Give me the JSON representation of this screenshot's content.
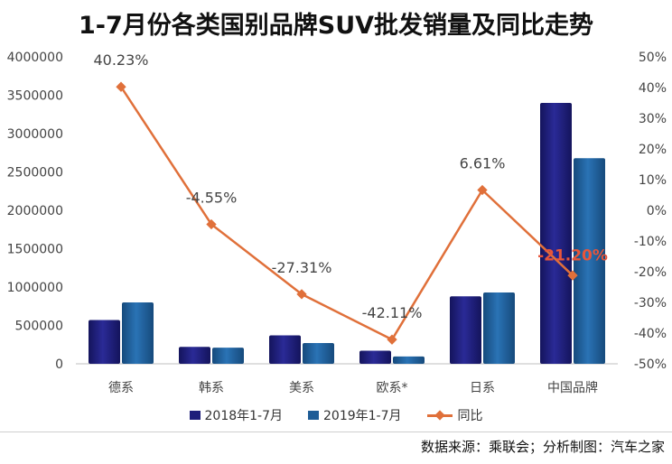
{
  "title": "1-7月份各类国别品牌SUV批发销量及同比走势",
  "source": "数据来源：乘联会；分析制图：汽车之家",
  "colors": {
    "s2018": "#1f1f7a",
    "s2019": "#1e5c96",
    "yoy": "#e0703a",
    "highlight": "#e8553a"
  },
  "chart_data": {
    "type": "bar",
    "categories": [
      "德系",
      "韩系",
      "美系",
      "欧系*",
      "日系",
      "中国品牌"
    ],
    "series": [
      {
        "name": "2018年1-7月",
        "values": [
          570000,
          220000,
          370000,
          170000,
          880000,
          3400000
        ]
      },
      {
        "name": "2019年1-7月",
        "values": [
          800000,
          210000,
          270000,
          95000,
          930000,
          2680000
        ]
      }
    ],
    "line_series": {
      "name": "同比",
      "values": [
        40.23,
        -4.55,
        -27.31,
        -42.11,
        6.61,
        -21.2
      ],
      "labels": [
        "40.23%",
        "-4.55%",
        "-27.31%",
        "-42.11%",
        "6.61%",
        "-21.20%"
      ]
    },
    "y_left": {
      "ylim": [
        0,
        4000000
      ],
      "ticks": [
        0,
        500000,
        1000000,
        1500000,
        2000000,
        2500000,
        3000000,
        3500000,
        4000000
      ],
      "tick_labels": [
        "0",
        "500000",
        "1000000",
        "1500000",
        "2000000",
        "2500000",
        "3000000",
        "3500000",
        "4000000"
      ]
    },
    "y_right": {
      "ylim": [
        -50,
        50
      ],
      "ticks": [
        -50,
        -40,
        -30,
        -20,
        -10,
        0,
        10,
        20,
        30,
        40,
        50
      ],
      "tick_labels": [
        "-50%",
        "-40%",
        "-30%",
        "-20%",
        "-10%",
        "0%",
        "10%",
        "20%",
        "30%",
        "40%",
        "50%"
      ]
    },
    "legend_position": "bottom",
    "grid": false
  }
}
